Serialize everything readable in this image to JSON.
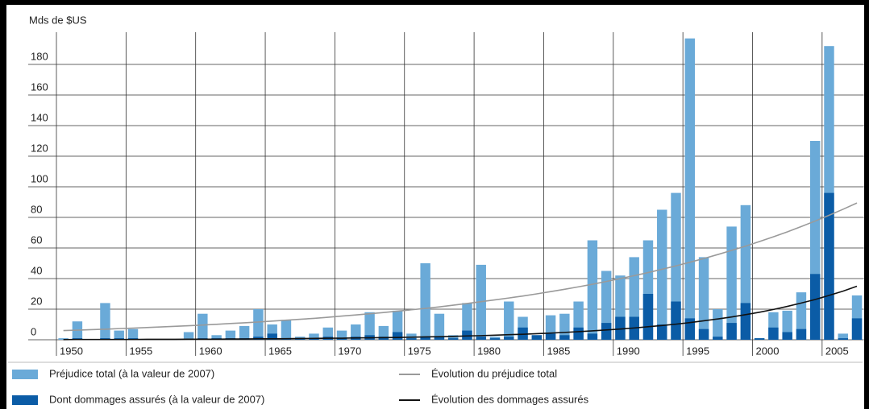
{
  "chart_data": {
    "type": "bar",
    "y_label": "Mds de $US",
    "x": [
      1950,
      1951,
      1952,
      1953,
      1954,
      1955,
      1956,
      1957,
      1958,
      1959,
      1960,
      1961,
      1962,
      1963,
      1964,
      1965,
      1966,
      1967,
      1968,
      1969,
      1970,
      1971,
      1972,
      1973,
      1974,
      1975,
      1976,
      1977,
      1978,
      1979,
      1980,
      1981,
      1982,
      1983,
      1984,
      1985,
      1986,
      1987,
      1988,
      1989,
      1990,
      1991,
      1992,
      1993,
      1994,
      1995,
      1996,
      1997,
      1998,
      1999,
      2000,
      2001,
      2002,
      2003,
      2004,
      2005,
      2006,
      2007
    ],
    "xlim": [
      1950,
      2008
    ],
    "xticks": [
      1950,
      1955,
      1960,
      1965,
      1970,
      1975,
      1980,
      1985,
      1990,
      1995,
      2000,
      2005
    ],
    "ylim": [
      0,
      200
    ],
    "yticks": [
      0,
      20,
      40,
      60,
      80,
      100,
      120,
      140,
      160,
      180
    ],
    "grid": true,
    "series": [
      {
        "name": "Préjudice total (à la valeur de 2007)",
        "color": "#6aaad8",
        "kind": "bar",
        "values": [
          1,
          12,
          0.5,
          24,
          6,
          7,
          0,
          0,
          0,
          5,
          17,
          3,
          6,
          9,
          20,
          10,
          13,
          2,
          4,
          8,
          6,
          10,
          18,
          9,
          19,
          4,
          50,
          17,
          3,
          24,
          49,
          2,
          25,
          15,
          3,
          16,
          17,
          25,
          65,
          45,
          42,
          54,
          65,
          85,
          96,
          197,
          54,
          20,
          74,
          88,
          1,
          18,
          19,
          31,
          130,
          192,
          4,
          29
        ]
      },
      {
        "name": "Dont dommages assurés (à la valeur de 2007)",
        "color": "#0b5ca6",
        "kind": "bar",
        "values": [
          0,
          1,
          0,
          1,
          1,
          1,
          0,
          0,
          0,
          0.5,
          1,
          1,
          1,
          1,
          2,
          4,
          1,
          1,
          1,
          2,
          1,
          2,
          3,
          2,
          5,
          1,
          2,
          2,
          1,
          6,
          2,
          1,
          2,
          8,
          3,
          4,
          3,
          8,
          4,
          11,
          15,
          15,
          30,
          10,
          25,
          14,
          7,
          2,
          11,
          24,
          1,
          8,
          5,
          7,
          43,
          96,
          1,
          14
        ]
      },
      {
        "name": "Évolution du préjudice total",
        "color": "#9a9a9a",
        "kind": "line",
        "values": [
          6.0,
          6.3,
          6.6,
          6.9,
          7.3,
          7.6,
          8.0,
          8.4,
          8.8,
          9.2,
          9.6,
          10.1,
          10.6,
          11.1,
          11.6,
          12.2,
          12.8,
          13.4,
          14.0,
          14.7,
          15.5,
          16.2,
          17.0,
          17.8,
          18.7,
          19.6,
          20.5,
          21.5,
          22.6,
          23.7,
          24.9,
          26.1,
          27.3,
          28.6,
          30.0,
          31.5,
          33.0,
          34.6,
          36.3,
          38.1,
          40.0,
          41.9,
          43.9,
          46.1,
          48.3,
          50.7,
          53.1,
          55.7,
          58.4,
          61.2,
          64.2,
          67.3,
          70.5,
          74.0,
          77.6,
          81.4,
          85.3,
          89.4
        ]
      },
      {
        "name": "Évolution des dommages assurés",
        "color": "#111111",
        "kind": "line",
        "values": [
          0.1,
          0.2,
          0.2,
          0.2,
          0.2,
          0.2,
          0.3,
          0.3,
          0.3,
          0.4,
          0.4,
          0.4,
          0.5,
          0.5,
          0.6,
          0.6,
          0.7,
          0.8,
          0.9,
          1.0,
          1.0,
          1.2,
          1.3,
          1.4,
          1.5,
          1.7,
          1.9,
          2.0,
          2.2,
          2.5,
          2.7,
          3.0,
          3.3,
          3.6,
          4.0,
          4.4,
          4.8,
          5.3,
          5.8,
          6.4,
          7.0,
          7.7,
          8.5,
          9.3,
          10.2,
          11.2,
          12.4,
          13.6,
          14.9,
          16.4,
          18.0,
          19.8,
          21.8,
          24.0,
          26.3,
          29.0,
          31.8,
          35.0
        ]
      }
    ]
  }
}
